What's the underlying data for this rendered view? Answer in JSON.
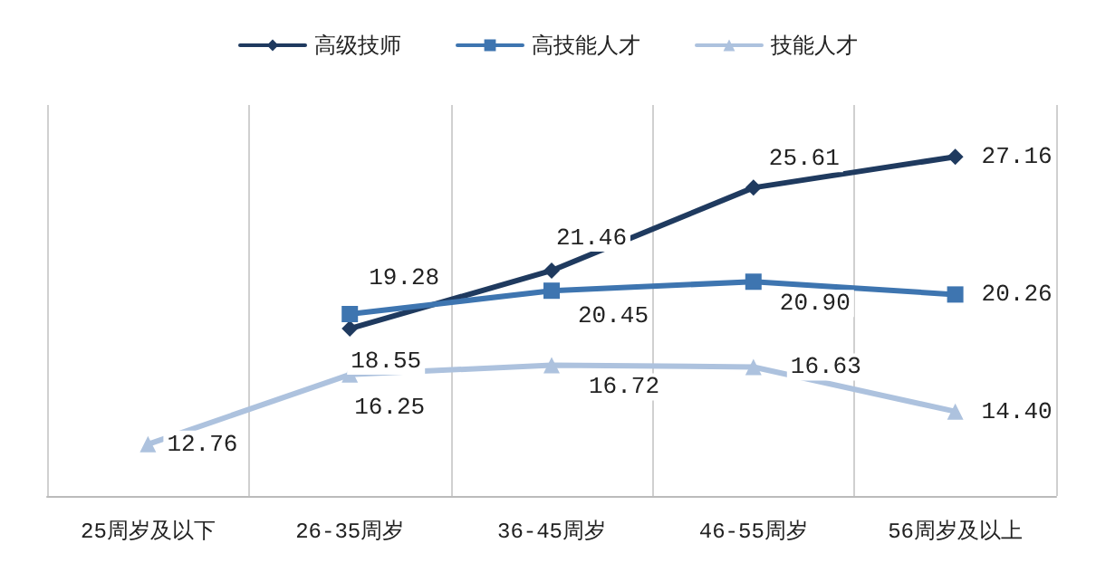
{
  "chart_data": {
    "type": "line",
    "categories": [
      "25周岁及以下",
      "26-35周岁",
      "36-45周岁",
      "46-55周岁",
      "56周岁及以上"
    ],
    "series": [
      {
        "name": "高级技师",
        "color": "#1f3a5f",
        "marker": "diamond",
        "values": [
          null,
          18.55,
          21.46,
          25.61,
          27.16
        ],
        "value_labels": [
          null,
          "18.55",
          "21.46",
          "25.61",
          "27.16"
        ]
      },
      {
        "name": "高技能人才",
        "color": "#3e75b0",
        "marker": "square",
        "values": [
          null,
          19.28,
          20.45,
          20.9,
          20.26
        ],
        "value_labels": [
          null,
          "19.28",
          "20.45",
          "20.90",
          "20.26"
        ]
      },
      {
        "name": "技能人才",
        "color": "#adc2de",
        "marker": "triangle",
        "values": [
          12.76,
          16.25,
          16.72,
          16.63,
          14.4
        ],
        "value_labels": [
          "12.76",
          "16.25",
          "16.72",
          "16.63",
          "14.40"
        ]
      }
    ],
    "grid": "x",
    "legend": "top",
    "line_style": "solid"
  }
}
